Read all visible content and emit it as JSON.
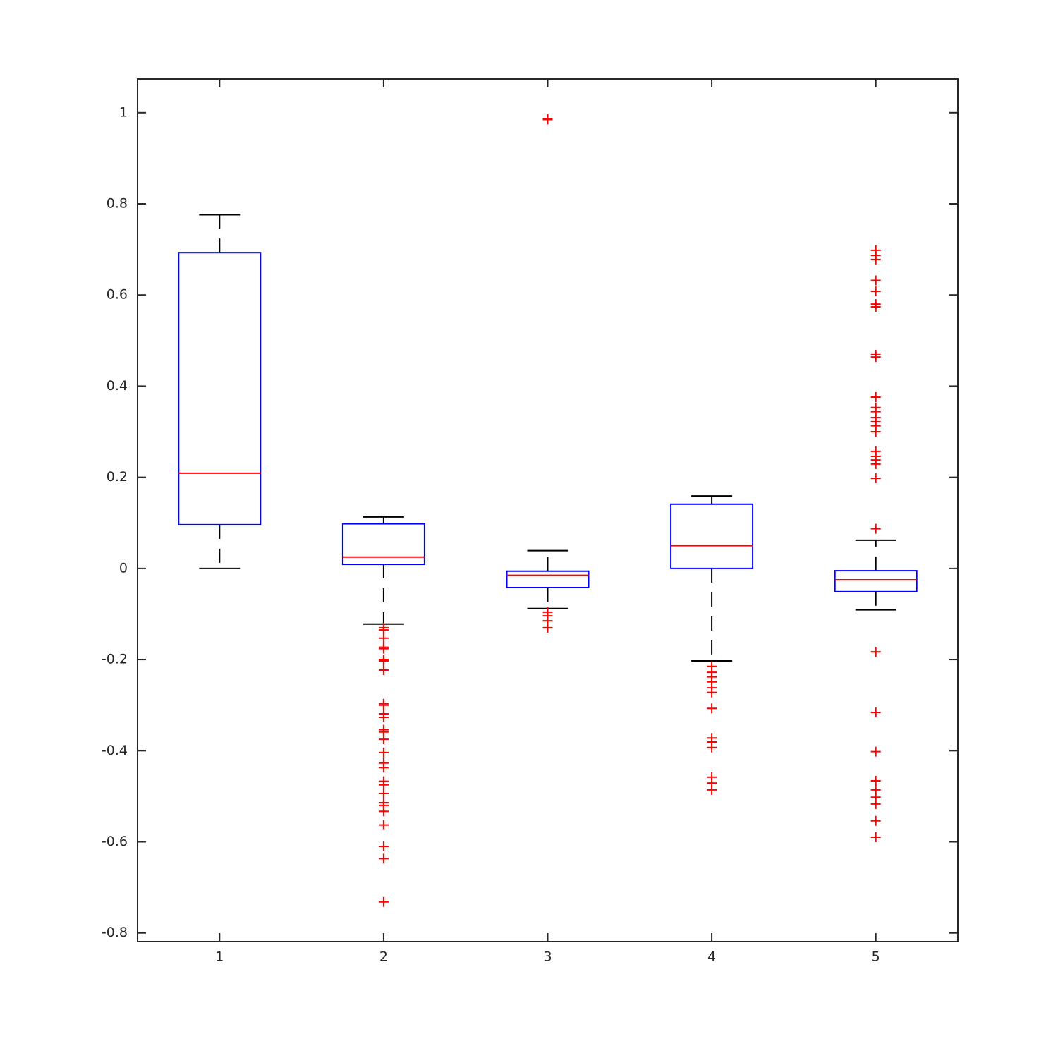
{
  "chart_data": {
    "type": "box",
    "categories": [
      "1",
      "2",
      "3",
      "4",
      "5"
    ],
    "xlim": [
      0.5,
      5.5
    ],
    "ylim": [
      -0.819,
      1.074
    ],
    "yticks": [
      -0.8,
      -0.6,
      -0.4,
      -0.2,
      0,
      0.2,
      0.4,
      0.6,
      0.8,
      1
    ],
    "box_color": "#0000ff",
    "median_color": "#ff0000",
    "whisker_color": "#000000",
    "outlier_color": "#ff0000",
    "boxes": [
      {
        "whisker_low": 0,
        "q1": 0.096,
        "median": 0.209,
        "q3": 0.693,
        "whisker_high": 0.776,
        "outliers": []
      },
      {
        "whisker_low": -0.122,
        "q1": 0.009,
        "median": 0.025,
        "q3": 0.098,
        "whisker_high": 0.113,
        "outliers": [
          -0.13,
          -0.135,
          -0.153,
          -0.173,
          -0.176,
          -0.2,
          -0.203,
          -0.223,
          -0.297,
          -0.3,
          -0.319,
          -0.327,
          -0.354,
          -0.359,
          -0.375,
          -0.404,
          -0.427,
          -0.437,
          -0.467,
          -0.475,
          -0.494,
          -0.514,
          -0.52,
          -0.533,
          -0.563,
          -0.61,
          -0.637,
          -0.732
        ]
      },
      {
        "whisker_low": -0.088,
        "q1": -0.042,
        "median": -0.015,
        "q3": -0.006,
        "whisker_high": 0.039,
        "outliers": [
          0.985,
          0.986,
          -0.096,
          -0.104,
          -0.115,
          -0.13
        ]
      },
      {
        "whisker_low": -0.203,
        "q1": 0,
        "median": 0.05,
        "q3": 0.141,
        "whisker_high": 0.159,
        "outliers": [
          -0.215,
          -0.228,
          -0.238,
          -0.249,
          -0.262,
          -0.272,
          -0.307,
          -0.372,
          -0.381,
          -0.393,
          -0.458,
          -0.471,
          -0.486
        ]
      },
      {
        "whisker_low": -0.091,
        "q1": -0.051,
        "median": -0.025,
        "q3": -0.005,
        "whisker_high": 0.062,
        "outliers": [
          0.087,
          0.698,
          0.687,
          0.678,
          0.632,
          0.608,
          0.58,
          0.574,
          0.469,
          0.464,
          0.376,
          0.353,
          0.344,
          0.331,
          0.322,
          0.313,
          0.3,
          0.257,
          0.246,
          0.238,
          0.229,
          0.198,
          -0.183,
          -0.316,
          -0.402,
          -0.466,
          -0.486,
          -0.502,
          -0.517,
          -0.554,
          -0.59
        ]
      }
    ]
  }
}
